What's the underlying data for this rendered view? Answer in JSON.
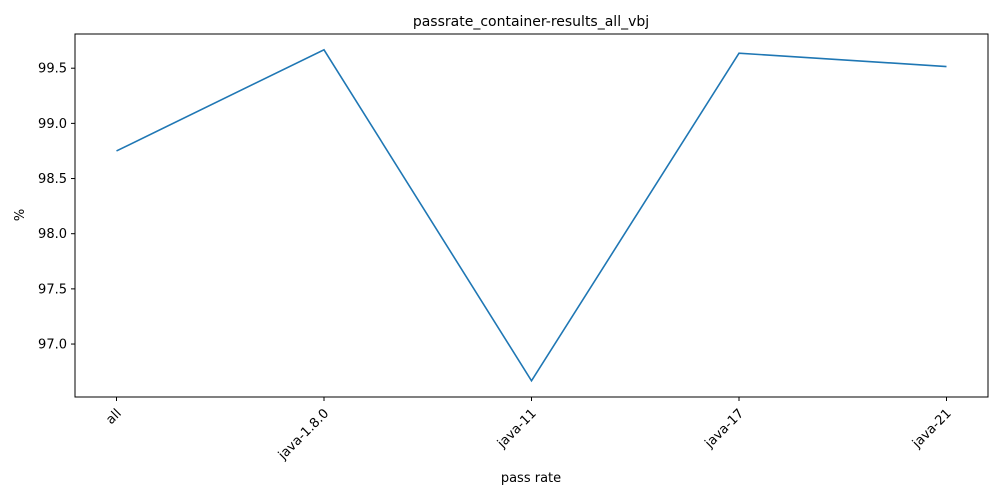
{
  "chart_data": {
    "type": "line",
    "title": "passrate_container-results_all_vbj",
    "xlabel": "pass rate",
    "ylabel": "%",
    "categories": [
      "all",
      "java-1.8.0",
      "java-11",
      "java-17",
      "java-21"
    ],
    "series": [
      {
        "values": [
          98.75,
          99.667,
          96.667,
          99.636,
          99.515
        ],
        "color": "#1f77b4"
      }
    ],
    "ylim": [
      96.52,
      99.81
    ],
    "yticks": [
      97.0,
      97.5,
      98.0,
      98.5,
      99.0,
      99.5
    ],
    "ytick_labels": [
      "97.0",
      "97.5",
      "98.0",
      "98.5",
      "99.0",
      "99.5"
    ],
    "grid": false,
    "legend": "none"
  }
}
